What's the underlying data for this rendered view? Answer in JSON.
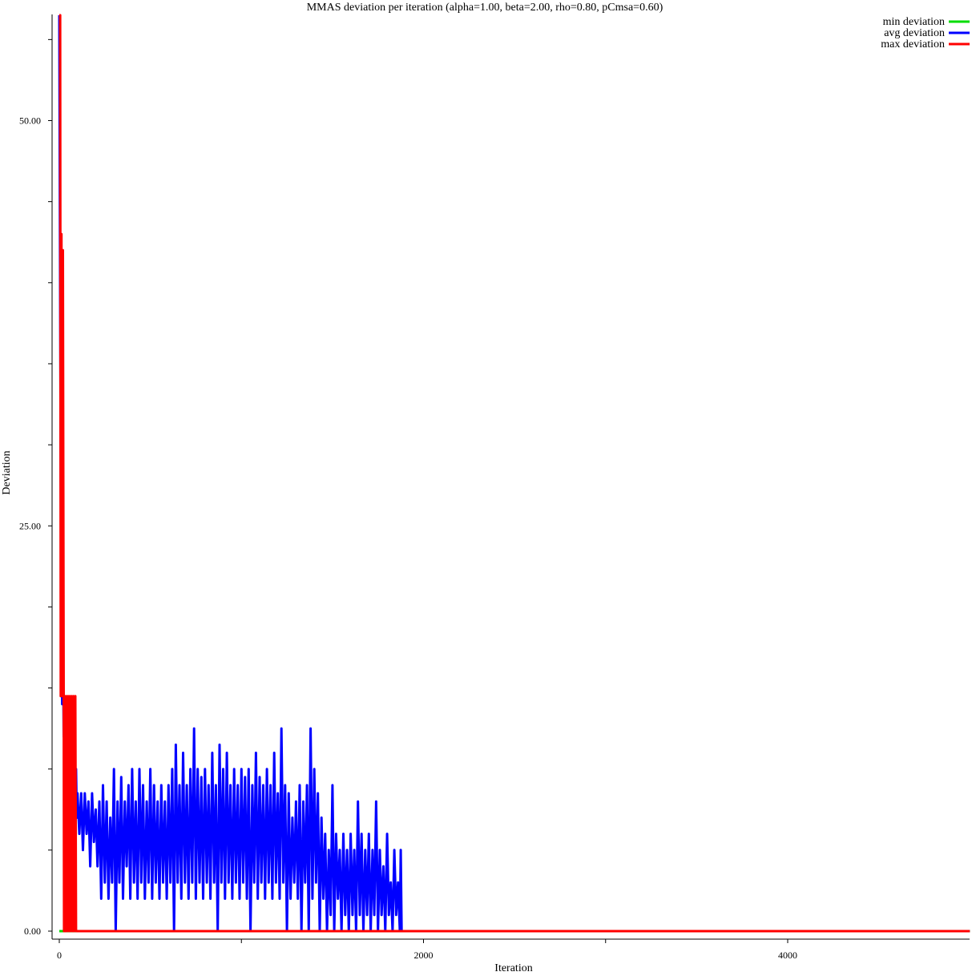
{
  "chart_data": {
    "type": "line",
    "title": "MMAS deviation per iteration (alpha=1.00, beta=2.00, rho=0.80, pCmsa=0.60)",
    "xlabel": "Iteration",
    "ylabel": "Deviation",
    "xlim": [
      0,
      5000
    ],
    "ylim": [
      -0.1,
      56.6
    ],
    "x_ticks": [
      0,
      1000,
      2000,
      3000,
      4000
    ],
    "x_tick_labels": [
      "0",
      "",
      "2000",
      "",
      "4000"
    ],
    "y_ticks": [
      0,
      5,
      10,
      15,
      20,
      25,
      30,
      35,
      40,
      45,
      50,
      55
    ],
    "y_tick_labels": [
      "0.00",
      "",
      "",
      "",
      "",
      "25.00",
      "",
      "",
      "",
      "",
      "50.00",
      ""
    ],
    "legend_position": "top-right",
    "grid": false,
    "series": [
      {
        "name": "min deviation",
        "color": "#00dd00",
        "points": [
          [
            0,
            0
          ],
          [
            5000,
            0
          ]
        ]
      },
      {
        "name": "avg deviation",
        "color": "#0000ff",
        "points": [
          [
            0,
            56.5
          ],
          [
            4,
            42.0
          ],
          [
            8,
            28.0
          ],
          [
            12,
            20.0
          ],
          [
            16,
            14.0
          ],
          [
            20,
            18.5
          ],
          [
            24,
            12.0
          ],
          [
            28,
            14.0
          ],
          [
            32,
            9.0
          ],
          [
            36,
            12.0
          ],
          [
            40,
            8.0
          ],
          [
            44,
            13.0
          ],
          [
            48,
            7.0
          ],
          [
            52,
            12.0
          ],
          [
            56,
            6.0
          ],
          [
            60,
            10.0
          ],
          [
            64,
            7.0
          ],
          [
            68,
            9.0
          ],
          [
            72,
            6.5
          ],
          [
            76,
            8.5
          ],
          [
            80,
            7.0
          ],
          [
            84,
            9.0
          ],
          [
            88,
            7.5
          ],
          [
            92,
            10.0
          ],
          [
            96,
            7.0
          ],
          [
            100,
            8.5
          ],
          [
            110,
            6.0
          ],
          [
            120,
            8.5
          ],
          [
            130,
            5.0
          ],
          [
            140,
            8.5
          ],
          [
            150,
            6.0
          ],
          [
            160,
            8.0
          ],
          [
            170,
            4.0
          ],
          [
            180,
            8.5
          ],
          [
            190,
            5.5
          ],
          [
            200,
            7.5
          ],
          [
            210,
            4.0
          ],
          [
            220,
            8.0
          ],
          [
            230,
            2.0
          ],
          [
            240,
            9.0
          ],
          [
            250,
            3.0
          ],
          [
            260,
            8.0
          ],
          [
            270,
            2.0
          ],
          [
            280,
            7.0
          ],
          [
            290,
            3.0
          ],
          [
            300,
            10.0
          ],
          [
            310,
            0.0
          ],
          [
            320,
            8.0
          ],
          [
            330,
            3.0
          ],
          [
            340,
            9.5
          ],
          [
            350,
            2.0
          ],
          [
            360,
            8.0
          ],
          [
            370,
            4.0
          ],
          [
            380,
            9.0
          ],
          [
            390,
            2.0
          ],
          [
            400,
            10.0
          ],
          [
            410,
            3.0
          ],
          [
            420,
            8.0
          ],
          [
            430,
            2.0
          ],
          [
            440,
            10.0
          ],
          [
            450,
            3.0
          ],
          [
            460,
            9.0
          ],
          [
            470,
            2.0
          ],
          [
            480,
            8.0
          ],
          [
            490,
            3.0
          ],
          [
            500,
            10.0
          ],
          [
            510,
            2.0
          ],
          [
            520,
            9.0
          ],
          [
            530,
            3.0
          ],
          [
            540,
            8.0
          ],
          [
            550,
            2.0
          ],
          [
            560,
            9.0
          ],
          [
            570,
            3.0
          ],
          [
            580,
            8.0
          ],
          [
            590,
            2.0
          ],
          [
            600,
            9.0
          ],
          [
            610,
            3.0
          ],
          [
            620,
            10.0
          ],
          [
            630,
            0.0
          ],
          [
            640,
            11.5
          ],
          [
            650,
            3.0
          ],
          [
            660,
            9.0
          ],
          [
            670,
            2.0
          ],
          [
            680,
            11.0
          ],
          [
            690,
            3.0
          ],
          [
            700,
            9.0
          ],
          [
            710,
            2.0
          ],
          [
            720,
            10.0
          ],
          [
            730,
            3.0
          ],
          [
            740,
            12.5
          ],
          [
            750,
            2.0
          ],
          [
            760,
            10.0
          ],
          [
            770,
            3.0
          ],
          [
            780,
            9.5
          ],
          [
            790,
            2.0
          ],
          [
            800,
            10.0
          ],
          [
            810,
            3.0
          ],
          [
            820,
            9.0
          ],
          [
            830,
            2.0
          ],
          [
            840,
            11.0
          ],
          [
            850,
            3.0
          ],
          [
            860,
            9.0
          ],
          [
            870,
            0.0
          ],
          [
            880,
            11.5
          ],
          [
            890,
            3.0
          ],
          [
            900,
            10.0
          ],
          [
            910,
            2.0
          ],
          [
            920,
            11.0
          ],
          [
            930,
            3.0
          ],
          [
            940,
            9.0
          ],
          [
            950,
            2.0
          ],
          [
            960,
            10.0
          ],
          [
            970,
            3.0
          ],
          [
            980,
            9.0
          ],
          [
            990,
            2.0
          ],
          [
            1000,
            10.0
          ],
          [
            1010,
            3.0
          ],
          [
            1020,
            9.5
          ],
          [
            1030,
            2.0
          ],
          [
            1040,
            10.0
          ],
          [
            1050,
            0.0
          ],
          [
            1060,
            9.0
          ],
          [
            1070,
            3.0
          ],
          [
            1080,
            11.0
          ],
          [
            1090,
            2.0
          ],
          [
            1100,
            9.5
          ],
          [
            1110,
            3.0
          ],
          [
            1120,
            9.0
          ],
          [
            1130,
            2.0
          ],
          [
            1140,
            10.0
          ],
          [
            1150,
            3.0
          ],
          [
            1160,
            9.0
          ],
          [
            1170,
            2.0
          ],
          [
            1180,
            11.0
          ],
          [
            1190,
            3.0
          ],
          [
            1200,
            8.5
          ],
          [
            1210,
            2.0
          ],
          [
            1220,
            12.5
          ],
          [
            1230,
            3.0
          ],
          [
            1240,
            9.0
          ],
          [
            1250,
            0.0
          ],
          [
            1260,
            8.5
          ],
          [
            1270,
            2.0
          ],
          [
            1280,
            7.0
          ],
          [
            1290,
            3.0
          ],
          [
            1300,
            8.0
          ],
          [
            1310,
            2.0
          ],
          [
            1320,
            9.0
          ],
          [
            1330,
            0.0
          ],
          [
            1340,
            8.0
          ],
          [
            1350,
            3.0
          ],
          [
            1360,
            9.0
          ],
          [
            1370,
            0.0
          ],
          [
            1380,
            12.5
          ],
          [
            1390,
            2.0
          ],
          [
            1400,
            10.0
          ],
          [
            1410,
            3.0
          ],
          [
            1420,
            8.5
          ],
          [
            1430,
            0.0
          ],
          [
            1440,
            7.0
          ],
          [
            1450,
            2.0
          ],
          [
            1460,
            6.0
          ],
          [
            1470,
            0.0
          ],
          [
            1480,
            5.0
          ],
          [
            1490,
            1.0
          ],
          [
            1500,
            9.0
          ],
          [
            1510,
            0.0
          ],
          [
            1520,
            6.0
          ],
          [
            1530,
            2.0
          ],
          [
            1540,
            5.0
          ],
          [
            1550,
            0.0
          ],
          [
            1560,
            6.0
          ],
          [
            1570,
            1.0
          ],
          [
            1580,
            5.0
          ],
          [
            1590,
            0.0
          ],
          [
            1600,
            6.0
          ],
          [
            1610,
            1.0
          ],
          [
            1620,
            5.0
          ],
          [
            1630,
            0.0
          ],
          [
            1640,
            8.0
          ],
          [
            1650,
            1.0
          ],
          [
            1660,
            6.0
          ],
          [
            1670,
            0.0
          ],
          [
            1680,
            5.0
          ],
          [
            1690,
            1.0
          ],
          [
            1700,
            6.0
          ],
          [
            1710,
            0.0
          ],
          [
            1720,
            5.0
          ],
          [
            1730,
            1.0
          ],
          [
            1740,
            8.0
          ],
          [
            1750,
            0.0
          ],
          [
            1760,
            5.0
          ],
          [
            1770,
            1.0
          ],
          [
            1780,
            4.0
          ],
          [
            1790,
            0.0
          ],
          [
            1800,
            6.0
          ],
          [
            1810,
            1.0
          ],
          [
            1820,
            3.0
          ],
          [
            1830,
            0.0
          ],
          [
            1840,
            5.0
          ],
          [
            1850,
            1.0
          ],
          [
            1860,
            3.0
          ],
          [
            1870,
            0.0
          ],
          [
            1875,
            5.0
          ],
          [
            1880,
            0.0
          ],
          [
            5000,
            0.0
          ]
        ]
      },
      {
        "name": "max deviation",
        "color": "#ff0000",
        "points": [
          [
            0,
            56.5
          ],
          [
            5,
            56.5
          ],
          [
            8,
            14.5
          ],
          [
            12,
            43.0
          ],
          [
            16,
            14.5
          ],
          [
            20,
            42.0
          ],
          [
            24,
            14.5
          ],
          [
            26,
            0.0
          ],
          [
            30,
            14.5
          ],
          [
            34,
            0.0
          ],
          [
            38,
            14.5
          ],
          [
            42,
            0.0
          ],
          [
            48,
            14.5
          ],
          [
            52,
            0.0
          ],
          [
            58,
            14.5
          ],
          [
            62,
            0.0
          ],
          [
            68,
            14.5
          ],
          [
            72,
            0.0
          ],
          [
            78,
            14.5
          ],
          [
            82,
            0.0
          ],
          [
            88,
            14.5
          ],
          [
            92,
            0.0
          ],
          [
            5000,
            0.0
          ]
        ]
      }
    ]
  }
}
